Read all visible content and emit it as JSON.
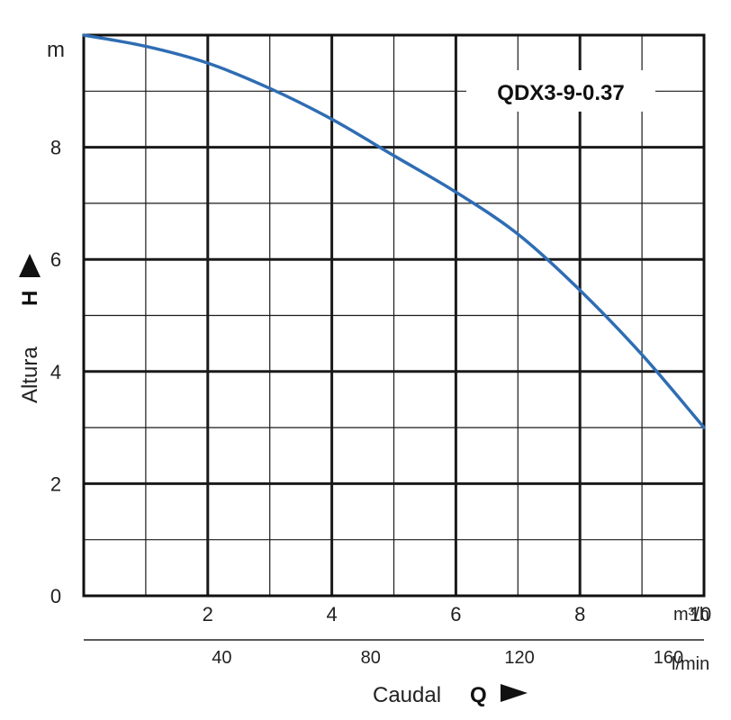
{
  "chart_data": {
    "type": "line",
    "title": "QDX3-9-0.37",
    "x": [
      0,
      1,
      2,
      3,
      4,
      5,
      6,
      7,
      8,
      9,
      10
    ],
    "series": [
      {
        "values": [
          10.0,
          9.8,
          9.5,
          9.05,
          8.5,
          7.85,
          7.2,
          6.45,
          5.45,
          4.3,
          3.0
        ]
      }
    ],
    "xlim": [
      0,
      10
    ],
    "ylim": [
      0,
      10
    ],
    "x_ticks": [
      {
        "value": 2,
        "label": "2"
      },
      {
        "value": 4,
        "label": "4"
      },
      {
        "value": 6,
        "label": "6"
      },
      {
        "value": 8,
        "label": "8"
      },
      {
        "value": 10,
        "label": "10"
      }
    ],
    "y_ticks": [
      {
        "value": 0,
        "label": "0"
      },
      {
        "value": 2,
        "label": "2"
      },
      {
        "value": 4,
        "label": "4"
      },
      {
        "value": 6,
        "label": "6"
      },
      {
        "value": 8,
        "label": "8"
      }
    ],
    "y_unit": "m",
    "x_unit": "m³/h",
    "secondary_x_ticks": [
      {
        "value": 40,
        "label": "40"
      },
      {
        "value": 80,
        "label": "80"
      },
      {
        "value": 120,
        "label": "120"
      },
      {
        "value": 160,
        "label": "160"
      }
    ],
    "secondary_x_unit": "l/min",
    "xlabel": {
      "word": "Caudal",
      "symbol": "Q"
    },
    "ylabel": {
      "word": "Altura",
      "symbol": "H"
    },
    "grid": true,
    "line_color": "#2f6db3",
    "grid_color": "#1a1a1a"
  }
}
